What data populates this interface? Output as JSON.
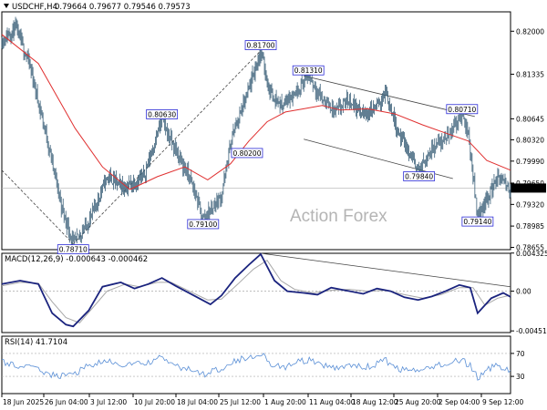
{
  "header": {
    "arrow_icon": "triangle-down-icon",
    "symbol": "USDCHF,H4",
    "ohlc": "0.79664 0.79677 0.79546 0.79573"
  },
  "watermark": "Action Forex",
  "colors": {
    "bars": "#3a5f78",
    "ma": "#e03030",
    "trendline": "#444444",
    "label_border": "#2b2bd6",
    "macd_line": "#1a237e",
    "macd_signal": "#a8a8a8",
    "rsi_line": "#5a8fd6",
    "price_box": "#000000"
  },
  "chart_data": [
    {
      "type": "ohlc",
      "title": "USDCHF,H4",
      "ylim": [
        0.7862,
        0.823
      ],
      "y_ticks": [
        "0.82000",
        "0.81335",
        "0.80645",
        "0.80320",
        "0.79990",
        "0.79650",
        "0.79320",
        "0.78985",
        "0.78655"
      ],
      "current_price": "0.79573",
      "x_ticks": [
        "18 Jun 2025",
        "26 Jun 04:00",
        "3 Jul 12:00",
        "10 Jul 20:00",
        "18 Jul 04:00",
        "25 Jul 12:00",
        "1 Aug 20:00",
        "11 Aug 04:00",
        "18 Aug 12:00",
        "25 Aug 20:00",
        "2 Sep 04:00",
        "9 Sep 12:00"
      ],
      "pivot_labels": [
        {
          "text": "0.78710",
          "bar": 78,
          "value": 0.7871,
          "pos": "below"
        },
        {
          "text": "0.80630",
          "bar": 175,
          "value": 0.8063,
          "pos": "above"
        },
        {
          "text": "0.79100",
          "bar": 220,
          "value": 0.791,
          "pos": "below"
        },
        {
          "text": "0.81700",
          "bar": 283,
          "value": 0.817,
          "pos": "above"
        },
        {
          "text": "0.80200",
          "bar": 268,
          "value": 0.802,
          "pos": "below"
        },
        {
          "text": "0.81310",
          "bar": 335,
          "value": 0.8131,
          "pos": "above"
        },
        {
          "text": "0.79840",
          "bar": 456,
          "value": 0.7984,
          "pos": "below"
        },
        {
          "text": "0.80710",
          "bar": 503,
          "value": 0.8071,
          "pos": "above"
        },
        {
          "text": "0.79140",
          "bar": 520,
          "value": 0.7914,
          "pos": "below"
        }
      ],
      "trendlines": [
        {
          "from": [
            0,
            0.7985
          ],
          "to": [
            78,
            0.7871
          ],
          "dashed": true
        },
        {
          "from": [
            78,
            0.7871
          ],
          "to": [
            283,
            0.817
          ],
          "dashed": true
        },
        {
          "from": [
            330,
            0.8131
          ],
          "to": [
            517,
            0.8068
          ],
          "dashed": false
        },
        {
          "from": [
            330,
            0.8033
          ],
          "to": [
            493,
            0.7972
          ],
          "dashed": false
        }
      ],
      "key_points": [
        [
          0,
          0.8185
        ],
        [
          15,
          0.8205
        ],
        [
          30,
          0.815
        ],
        [
          50,
          0.803
        ],
        [
          65,
          0.793
        ],
        [
          78,
          0.7871
        ],
        [
          95,
          0.7905
        ],
        [
          115,
          0.7975
        ],
        [
          135,
          0.7958
        ],
        [
          155,
          0.7975
        ],
        [
          175,
          0.8063
        ],
        [
          190,
          0.8015
        ],
        [
          205,
          0.7975
        ],
        [
          220,
          0.791
        ],
        [
          240,
          0.7945
        ],
        [
          252,
          0.804
        ],
        [
          268,
          0.81
        ],
        [
          283,
          0.817
        ],
        [
          292,
          0.811
        ],
        [
          305,
          0.8085
        ],
        [
          320,
          0.8105
        ],
        [
          335,
          0.8131
        ],
        [
          350,
          0.8095
        ],
        [
          365,
          0.8075
        ],
        [
          380,
          0.8095
        ],
        [
          395,
          0.807
        ],
        [
          410,
          0.8085
        ],
        [
          420,
          0.8105
        ],
        [
          432,
          0.805
        ],
        [
          445,
          0.801
        ],
        [
          456,
          0.7984
        ],
        [
          470,
          0.802
        ],
        [
          485,
          0.8035
        ],
        [
          503,
          0.8071
        ],
        [
          510,
          0.804
        ],
        [
          520,
          0.7914
        ],
        [
          530,
          0.794
        ],
        [
          542,
          0.7975
        ],
        [
          550,
          0.7962
        ],
        [
          556,
          0.79573
        ]
      ],
      "ma_points": [
        [
          0,
          0.8195
        ],
        [
          40,
          0.815
        ],
        [
          80,
          0.805
        ],
        [
          110,
          0.799
        ],
        [
          140,
          0.7955
        ],
        [
          170,
          0.7975
        ],
        [
          200,
          0.799
        ],
        [
          225,
          0.797
        ],
        [
          250,
          0.7995
        ],
        [
          270,
          0.803
        ],
        [
          290,
          0.806
        ],
        [
          310,
          0.8075
        ],
        [
          330,
          0.808
        ],
        [
          350,
          0.8085
        ],
        [
          370,
          0.8078
        ],
        [
          400,
          0.808
        ],
        [
          430,
          0.8072
        ],
        [
          460,
          0.8055
        ],
        [
          490,
          0.804
        ],
        [
          510,
          0.803
        ],
        [
          530,
          0.8
        ],
        [
          556,
          0.7985
        ]
      ]
    },
    {
      "type": "line",
      "title": "MACD(12,26,9) -0.000643 -0.000462",
      "ylim": [
        -0.0047,
        0.0043
      ],
      "y_ticks": [
        "0.004325",
        "0.00",
        "-0.004511"
      ],
      "trendline": {
        "from": [
          283,
          0.0043
        ],
        "to": [
          556,
          0.0005
        ]
      },
      "series": [
        {
          "name": "MACD",
          "values": [
            [
              0,
              0.0008
            ],
            [
              20,
              0.0012
            ],
            [
              40,
              0.0008
            ],
            [
              55,
              -0.0025
            ],
            [
              70,
              -0.0038
            ],
            [
              78,
              -0.004
            ],
            [
              95,
              -0.0022
            ],
            [
              110,
              0.0005
            ],
            [
              130,
              0.001
            ],
            [
              145,
              0.0003
            ],
            [
              160,
              0.0008
            ],
            [
              175,
              0.0015
            ],
            [
              190,
              0.0006
            ],
            [
              210,
              -0.0005
            ],
            [
              228,
              -0.0015
            ],
            [
              240,
              -0.0005
            ],
            [
              255,
              0.0015
            ],
            [
              270,
              0.003
            ],
            [
              283,
              0.0042
            ],
            [
              298,
              0.0012
            ],
            [
              312,
              0.0
            ],
            [
              330,
              -0.0002
            ],
            [
              345,
              -0.0004
            ],
            [
              360,
              0.0004
            ],
            [
              375,
              0.0001
            ],
            [
              395,
              -0.0003
            ],
            [
              410,
              0.0003
            ],
            [
              425,
              0.0
            ],
            [
              440,
              -0.0007
            ],
            [
              455,
              -0.001
            ],
            [
              470,
              -0.0006
            ],
            [
              485,
              0.0
            ],
            [
              500,
              0.0007
            ],
            [
              512,
              0.0004
            ],
            [
              520,
              -0.0025
            ],
            [
              535,
              -0.0008
            ],
            [
              548,
              -0.0002
            ],
            [
              556,
              -0.000643
            ]
          ]
        },
        {
          "name": "Signal",
          "values": [
            [
              0,
              0.0006
            ],
            [
              20,
              0.001
            ],
            [
              40,
              0.0009
            ],
            [
              55,
              -0.0012
            ],
            [
              70,
              -0.003
            ],
            [
              85,
              -0.0036
            ],
            [
              100,
              -0.0018
            ],
            [
              115,
              0.0
            ],
            [
              135,
              0.0008
            ],
            [
              150,
              0.0005
            ],
            [
              170,
              0.001
            ],
            [
              185,
              0.001
            ],
            [
              205,
              0.0
            ],
            [
              225,
              -0.001
            ],
            [
              240,
              -0.0009
            ],
            [
              258,
              0.0008
            ],
            [
              275,
              0.0025
            ],
            [
              290,
              0.0035
            ],
            [
              305,
              0.0012
            ],
            [
              320,
              0.0002
            ],
            [
              340,
              -0.0002
            ],
            [
              360,
              0.0001
            ],
            [
              380,
              0.0002
            ],
            [
              400,
              0.0
            ],
            [
              420,
              0.0001
            ],
            [
              440,
              -0.0004
            ],
            [
              460,
              -0.0008
            ],
            [
              480,
              -0.0004
            ],
            [
              500,
              0.0004
            ],
            [
              515,
              0.0004
            ],
            [
              528,
              -0.0016
            ],
            [
              542,
              -0.0008
            ],
            [
              556,
              -0.000462
            ]
          ]
        }
      ]
    },
    {
      "type": "line",
      "title": "RSI(14) 41.7104",
      "ylim": [
        0,
        100
      ],
      "y_ticks": [
        "70",
        "30"
      ],
      "series": [
        {
          "name": "RSI(14)",
          "values": [
            [
              0,
              55
            ],
            [
              20,
              48
            ],
            [
              40,
              42
            ],
            [
              60,
              30
            ],
            [
              78,
              33
            ],
            [
              95,
              50
            ],
            [
              115,
              55
            ],
            [
              135,
              50
            ],
            [
              155,
              52
            ],
            [
              175,
              62
            ],
            [
              190,
              48
            ],
            [
              205,
              42
            ],
            [
              220,
              33
            ],
            [
              240,
              45
            ],
            [
              255,
              58
            ],
            [
              270,
              62
            ],
            [
              283,
              72
            ],
            [
              295,
              50
            ],
            [
              310,
              46
            ],
            [
              325,
              55
            ],
            [
              335,
              58
            ],
            [
              350,
              48
            ],
            [
              365,
              45
            ],
            [
              380,
              52
            ],
            [
              395,
              44
            ],
            [
              410,
              52
            ],
            [
              420,
              57
            ],
            [
              432,
              44
            ],
            [
              445,
              40
            ],
            [
              456,
              37
            ],
            [
              470,
              48
            ],
            [
              485,
              52
            ],
            [
              503,
              58
            ],
            [
              512,
              48
            ],
            [
              520,
              28
            ],
            [
              532,
              42
            ],
            [
              542,
              50
            ],
            [
              550,
              44
            ],
            [
              556,
              41.7104
            ]
          ]
        }
      ]
    }
  ]
}
